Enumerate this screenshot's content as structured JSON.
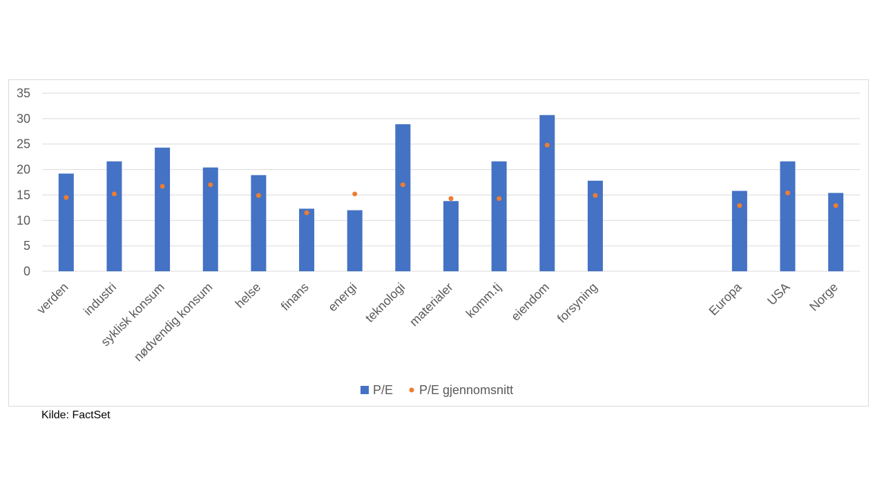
{
  "chart_data": {
    "type": "bar",
    "categories": [
      "verden",
      "industri",
      "syklisk konsum",
      "nødvendig konsum",
      "helse",
      "finans",
      "energi",
      "teknologi",
      "materialer",
      "komm.tj",
      "eiendom",
      "forsyning",
      "",
      "",
      "Europa",
      "USA",
      "Norge"
    ],
    "series": [
      {
        "name": "P/E",
        "type": "bar",
        "color": "#4472c4",
        "values": [
          19.2,
          21.6,
          24.3,
          20.4,
          18.9,
          12.3,
          12.0,
          28.9,
          13.8,
          21.6,
          30.7,
          17.8,
          null,
          null,
          15.8,
          21.6,
          15.4
        ]
      },
      {
        "name": "P/E gjennomsnitt",
        "type": "scatter",
        "color": "#ed7d31",
        "values": [
          14.5,
          15.2,
          16.7,
          17.0,
          14.9,
          11.5,
          15.2,
          17.0,
          14.3,
          14.3,
          24.8,
          14.9,
          null,
          null,
          12.9,
          15.4,
          12.9
        ]
      }
    ],
    "title": "",
    "xlabel": "",
    "ylabel": "",
    "ylim": [
      0,
      35
    ],
    "yticks": [
      "0",
      "5",
      "10",
      "15",
      "20",
      "25",
      "30",
      "35"
    ],
    "grid": true,
    "legend_position": "bottom"
  },
  "source_note": "Kilde: FactSet"
}
